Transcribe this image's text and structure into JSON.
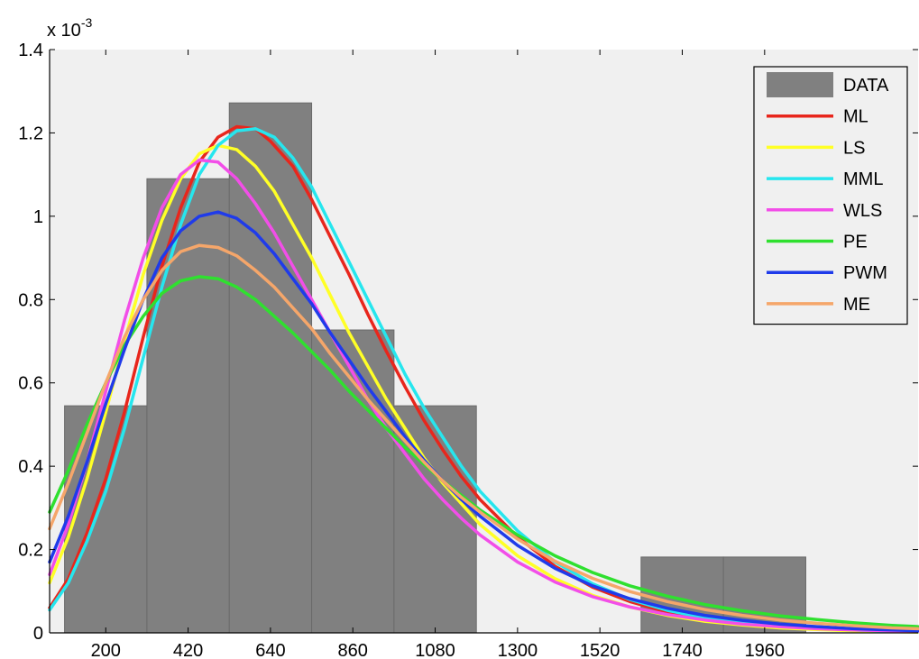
{
  "chart_data": {
    "type": "bar",
    "title": "",
    "xlabel": "",
    "ylabel": "",
    "y_exponent": {
      "base": "x 10",
      "power": "-3"
    },
    "xlim": [
      50,
      2370
    ],
    "ylim": [
      0,
      1.4
    ],
    "x_ticks": [
      200,
      420,
      640,
      860,
      1080,
      1300,
      1520,
      1740,
      1960
    ],
    "y_ticks": [
      {
        "value": 0,
        "label": "0"
      },
      {
        "value": 0.2,
        "label": "0.2"
      },
      {
        "value": 0.4,
        "label": "0.4"
      },
      {
        "value": 0.6,
        "label": "0.6"
      },
      {
        "value": 0.8,
        "label": "0.8"
      },
      {
        "value": 1.0,
        "label": "1"
      },
      {
        "value": 1.2,
        "label": "1.2"
      },
      {
        "value": 1.4,
        "label": "1.4"
      }
    ],
    "grid": false,
    "legend_position": "top-right",
    "histogram": {
      "name": "DATA",
      "color": "#808080",
      "bin_width": 220,
      "bins": [
        {
          "center": 200,
          "value": 0.545
        },
        {
          "center": 420,
          "value": 1.09
        },
        {
          "center": 640,
          "value": 1.272
        },
        {
          "center": 860,
          "value": 0.727
        },
        {
          "center": 1080,
          "value": 0.545
        },
        {
          "center": 1740,
          "value": 0.182
        },
        {
          "center": 1960,
          "value": 0.182
        }
      ]
    },
    "series": [
      {
        "name": "ML",
        "color": "#e8261c",
        "x": [
          50,
          100,
          150,
          200,
          250,
          300,
          350,
          400,
          450,
          500,
          550,
          600,
          640,
          700,
          750,
          800,
          850,
          900,
          950,
          1000,
          1050,
          1100,
          1150,
          1200,
          1300,
          1400,
          1500,
          1600,
          1700,
          1800,
          1900,
          2000,
          2100,
          2200,
          2300,
          2370
        ],
        "y": [
          0.06,
          0.13,
          0.24,
          0.37,
          0.53,
          0.71,
          0.88,
          1.02,
          1.13,
          1.19,
          1.215,
          1.21,
          1.18,
          1.12,
          1.04,
          0.95,
          0.86,
          0.765,
          0.675,
          0.59,
          0.51,
          0.44,
          0.375,
          0.32,
          0.23,
          0.16,
          0.11,
          0.075,
          0.05,
          0.034,
          0.023,
          0.015,
          0.01,
          0.006,
          0.004,
          0.003
        ]
      },
      {
        "name": "LS",
        "color": "#ffff26",
        "x": [
          50,
          100,
          150,
          200,
          250,
          300,
          350,
          400,
          450,
          500,
          550,
          600,
          650,
          700,
          750,
          800,
          850,
          900,
          950,
          1000,
          1050,
          1100,
          1150,
          1200,
          1300,
          1400,
          1500,
          1600,
          1700,
          1800,
          1900,
          2000,
          2100,
          2200,
          2300,
          2370
        ],
        "y": [
          0.12,
          0.23,
          0.37,
          0.53,
          0.7,
          0.86,
          0.99,
          1.09,
          1.15,
          1.17,
          1.16,
          1.12,
          1.06,
          0.98,
          0.9,
          0.81,
          0.72,
          0.64,
          0.56,
          0.49,
          0.42,
          0.36,
          0.31,
          0.26,
          0.185,
          0.13,
          0.09,
          0.062,
          0.042,
          0.028,
          0.019,
          0.012,
          0.008,
          0.005,
          0.003,
          0.002
        ]
      },
      {
        "name": "MML",
        "color": "#26e6ee",
        "x": [
          50,
          100,
          150,
          200,
          250,
          300,
          350,
          400,
          450,
          500,
          550,
          600,
          650,
          700,
          750,
          800,
          850,
          900,
          950,
          1000,
          1050,
          1100,
          1150,
          1200,
          1300,
          1400,
          1500,
          1600,
          1700,
          1800,
          1900,
          2000,
          2100,
          2200,
          2300,
          2370
        ],
        "y": [
          0.055,
          0.12,
          0.22,
          0.34,
          0.49,
          0.66,
          0.83,
          0.98,
          1.1,
          1.17,
          1.205,
          1.21,
          1.19,
          1.14,
          1.07,
          0.98,
          0.89,
          0.8,
          0.71,
          0.62,
          0.54,
          0.47,
          0.4,
          0.34,
          0.245,
          0.17,
          0.118,
          0.08,
          0.054,
          0.036,
          0.024,
          0.016,
          0.011,
          0.007,
          0.004,
          0.003
        ]
      },
      {
        "name": "WLS",
        "color": "#f24ee8",
        "x": [
          50,
          100,
          150,
          200,
          250,
          300,
          350,
          400,
          450,
          500,
          550,
          600,
          650,
          700,
          750,
          800,
          850,
          900,
          950,
          1000,
          1050,
          1100,
          1150,
          1200,
          1300,
          1400,
          1500,
          1600,
          1700,
          1800,
          1900,
          2000,
          2100,
          2200,
          2300,
          2370
        ],
        "y": [
          0.14,
          0.26,
          0.41,
          0.58,
          0.75,
          0.9,
          1.02,
          1.1,
          1.135,
          1.13,
          1.09,
          1.03,
          0.96,
          0.88,
          0.8,
          0.72,
          0.64,
          0.56,
          0.49,
          0.43,
          0.37,
          0.32,
          0.275,
          0.235,
          0.17,
          0.122,
          0.087,
          0.062,
          0.044,
          0.031,
          0.021,
          0.015,
          0.01,
          0.007,
          0.005,
          0.004
        ]
      },
      {
        "name": "PE",
        "color": "#2fe02f",
        "x": [
          50,
          100,
          150,
          200,
          250,
          300,
          350,
          400,
          450,
          500,
          550,
          600,
          650,
          700,
          750,
          800,
          850,
          900,
          950,
          1000,
          1050,
          1100,
          1150,
          1200,
          1300,
          1400,
          1500,
          1600,
          1700,
          1800,
          1900,
          2000,
          2100,
          2200,
          2300,
          2370
        ],
        "y": [
          0.29,
          0.39,
          0.5,
          0.6,
          0.69,
          0.76,
          0.815,
          0.845,
          0.855,
          0.85,
          0.83,
          0.8,
          0.76,
          0.72,
          0.675,
          0.63,
          0.58,
          0.535,
          0.49,
          0.445,
          0.405,
          0.365,
          0.33,
          0.295,
          0.235,
          0.185,
          0.145,
          0.113,
          0.088,
          0.068,
          0.053,
          0.041,
          0.032,
          0.024,
          0.018,
          0.015
        ]
      },
      {
        "name": "PWM",
        "color": "#1f3bea",
        "x": [
          50,
          100,
          150,
          200,
          250,
          300,
          350,
          400,
          450,
          500,
          550,
          600,
          650,
          700,
          750,
          800,
          850,
          900,
          950,
          1000,
          1050,
          1100,
          1150,
          1200,
          1300,
          1400,
          1500,
          1600,
          1700,
          1800,
          1900,
          2000,
          2100,
          2200,
          2300,
          2370
        ],
        "y": [
          0.17,
          0.28,
          0.41,
          0.55,
          0.68,
          0.8,
          0.9,
          0.965,
          1.0,
          1.01,
          0.995,
          0.96,
          0.91,
          0.85,
          0.79,
          0.72,
          0.655,
          0.59,
          0.53,
          0.47,
          0.415,
          0.365,
          0.32,
          0.28,
          0.21,
          0.155,
          0.113,
          0.082,
          0.059,
          0.042,
          0.03,
          0.021,
          0.015,
          0.01,
          0.007,
          0.005
        ]
      },
      {
        "name": "ME",
        "color": "#f5a66a",
        "x": [
          50,
          100,
          150,
          200,
          250,
          300,
          350,
          400,
          450,
          500,
          550,
          600,
          650,
          700,
          750,
          800,
          850,
          900,
          950,
          1000,
          1050,
          1100,
          1150,
          1200,
          1300,
          1400,
          1500,
          1600,
          1700,
          1800,
          1900,
          2000,
          2100,
          2200,
          2300,
          2370
        ],
        "y": [
          0.25,
          0.36,
          0.48,
          0.6,
          0.71,
          0.8,
          0.87,
          0.915,
          0.93,
          0.925,
          0.905,
          0.87,
          0.83,
          0.78,
          0.73,
          0.67,
          0.615,
          0.56,
          0.51,
          0.46,
          0.41,
          0.365,
          0.325,
          0.29,
          0.225,
          0.172,
          0.131,
          0.099,
          0.075,
          0.056,
          0.042,
          0.031,
          0.023,
          0.017,
          0.012,
          0.01
        ]
      }
    ]
  }
}
